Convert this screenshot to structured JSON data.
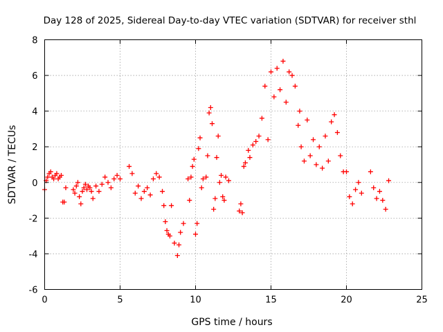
{
  "chart_data": {
    "type": "scatter",
    "title": "Day 128 of 2025, Sidereal Day-to-day VTEC variation (SDTVAR) for receiver sthl",
    "xlabel": "GPS time / hours",
    "ylabel": "SDTVAR / TECUs",
    "xlim": [
      0,
      25
    ],
    "ylim": [
      -6,
      8
    ],
    "xticks": [
      0,
      5,
      10,
      15,
      20,
      25
    ],
    "yticks": [
      -6,
      -4,
      -2,
      0,
      2,
      4,
      6,
      8
    ],
    "xtick_labels": [
      "0",
      "5",
      "10",
      "15",
      "20",
      "25"
    ],
    "ytick_labels": [
      "-6",
      "-4",
      "-2",
      "0",
      "2",
      "4",
      "6",
      "8"
    ],
    "grid": true,
    "marker": "plus",
    "series": [
      {
        "name": "SDTVAR",
        "color": "#ff0000",
        "x": [
          0.0,
          0.1,
          0.2,
          0.3,
          0.4,
          0.5,
          0.6,
          0.7,
          0.8,
          0.9,
          1.0,
          1.1,
          1.2,
          1.3,
          1.4,
          1.9,
          2.0,
          2.1,
          2.2,
          2.3,
          2.4,
          2.5,
          2.6,
          2.7,
          2.8,
          2.9,
          3.0,
          3.1,
          3.2,
          3.4,
          3.6,
          3.8,
          4.0,
          4.2,
          4.4,
          4.6,
          4.8,
          5.0,
          5.6,
          5.8,
          6.0,
          6.2,
          6.4,
          6.6,
          6.8,
          7.0,
          7.2,
          7.4,
          7.6,
          7.8,
          7.9,
          8.0,
          8.1,
          8.2,
          8.3,
          8.4,
          8.6,
          8.8,
          8.9,
          9.0,
          9.2,
          9.5,
          9.6,
          9.7,
          9.8,
          9.9,
          10.0,
          10.1,
          10.2,
          10.3,
          10.4,
          10.5,
          10.7,
          10.8,
          10.9,
          11.0,
          11.1,
          11.2,
          11.3,
          11.4,
          11.5,
          11.6,
          11.7,
          11.8,
          11.9,
          12.0,
          12.2,
          12.9,
          13.0,
          13.1,
          13.2,
          13.3,
          13.5,
          13.6,
          13.8,
          14.0,
          14.2,
          14.4,
          14.6,
          14.8,
          15.0,
          15.2,
          15.4,
          15.6,
          15.8,
          16.0,
          16.2,
          16.4,
          16.6,
          16.8,
          16.9,
          17.0,
          17.2,
          17.4,
          17.6,
          17.8,
          18.0,
          18.2,
          18.4,
          18.6,
          18.8,
          19.0,
          19.2,
          19.4,
          19.6,
          19.8,
          20.0,
          20.2,
          20.4,
          20.6,
          20.8,
          21.0,
          21.6,
          21.8,
          22.0,
          22.2,
          22.4,
          22.6,
          22.8
        ],
        "y": [
          -0.4,
          0.1,
          0.3,
          0.5,
          0.6,
          0.3,
          0.2,
          0.4,
          0.5,
          0.2,
          0.3,
          0.4,
          -1.1,
          -1.1,
          -0.3,
          -0.4,
          -0.6,
          -0.2,
          0.0,
          -0.8,
          -1.2,
          -0.5,
          -0.3,
          -0.1,
          -0.4,
          -0.2,
          -0.3,
          -0.5,
          -0.9,
          -0.2,
          -0.5,
          -0.1,
          0.3,
          0.0,
          -0.3,
          0.2,
          0.4,
          0.2,
          0.9,
          0.5,
          -0.6,
          -0.2,
          -0.9,
          -0.5,
          -0.3,
          -0.7,
          0.2,
          0.5,
          0.3,
          -0.5,
          -1.3,
          -2.2,
          -2.7,
          -2.9,
          -3.0,
          -1.3,
          -3.4,
          -4.1,
          -3.5,
          -2.8,
          -2.3,
          0.2,
          -1.0,
          0.3,
          0.9,
          1.3,
          -2.9,
          -2.3,
          1.9,
          2.5,
          -0.3,
          0.2,
          0.3,
          1.5,
          3.9,
          4.2,
          3.3,
          -1.5,
          -0.9,
          1.4,
          2.6,
          0.0,
          0.4,
          -0.8,
          -1.0,
          0.3,
          0.1,
          -1.6,
          -1.2,
          -1.7,
          0.9,
          1.1,
          1.8,
          1.4,
          2.1,
          2.3,
          2.6,
          3.6,
          5.4,
          2.4,
          6.2,
          4.8,
          6.4,
          5.2,
          6.8,
          4.5,
          6.2,
          6.0,
          5.4,
          3.2,
          4.0,
          2.0,
          1.2,
          3.5,
          1.5,
          2.4,
          1.0,
          2.0,
          0.8,
          2.6,
          1.2,
          3.4,
          3.8,
          2.8,
          1.5,
          0.6,
          0.6,
          -0.8,
          -1.2,
          -0.4,
          0.0,
          -0.6,
          0.6,
          -0.3,
          -0.9,
          -0.5,
          -1.0,
          -1.5,
          0.1
        ],
        "visible_lettering": "many"
      }
    ]
  }
}
